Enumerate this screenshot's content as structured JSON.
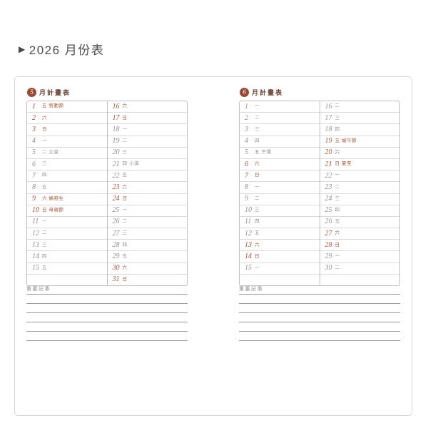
{
  "title": "2026 月份表",
  "title_bullet": "▶",
  "colors": {
    "accent_red": "#a3553a",
    "badge_bg": "#9a4a31",
    "header_brown": "#6b4236",
    "day_gray": "#8f8f8f"
  },
  "months": [
    {
      "badge_number": "5",
      "header_label": "月計畫表",
      "notes_label": "重要記事",
      "columns": [
        [
          {
            "day": "1",
            "weekday": "五",
            "note": "勞動節",
            "red": true,
            "note_red": true
          },
          {
            "day": "2",
            "weekday": "六",
            "red": true
          },
          {
            "day": "3",
            "weekday": "日",
            "red": true
          },
          {
            "day": "4",
            "weekday": "一"
          },
          {
            "day": "5",
            "weekday": "二",
            "note": "立夏"
          },
          {
            "day": "6",
            "weekday": "三"
          },
          {
            "day": "7",
            "weekday": "四"
          },
          {
            "day": "8",
            "weekday": "五"
          },
          {
            "day": "9",
            "weekday": "六",
            "note": "媽祖生",
            "red": true,
            "note_red": true
          },
          {
            "day": "10",
            "weekday": "日",
            "note": "母親節",
            "red": true,
            "note_red": true
          },
          {
            "day": "11",
            "weekday": "一"
          },
          {
            "day": "12",
            "weekday": "二"
          },
          {
            "day": "13",
            "weekday": "三"
          },
          {
            "day": "14",
            "weekday": "四"
          },
          {
            "day": "15",
            "weekday": "五"
          },
          {}
        ],
        [
          {
            "day": "16",
            "weekday": "六",
            "red": true
          },
          {
            "day": "17",
            "weekday": "日",
            "red": true
          },
          {
            "day": "18",
            "weekday": "一"
          },
          {
            "day": "19",
            "weekday": "二"
          },
          {
            "day": "20",
            "weekday": "三"
          },
          {
            "day": "21",
            "weekday": "四",
            "note": "小滿"
          },
          {
            "day": "22",
            "weekday": "五"
          },
          {
            "day": "23",
            "weekday": "六",
            "red": true
          },
          {
            "day": "24",
            "weekday": "日",
            "red": true
          },
          {
            "day": "25",
            "weekday": "一"
          },
          {
            "day": "26",
            "weekday": "二"
          },
          {
            "day": "27",
            "weekday": "三"
          },
          {
            "day": "28",
            "weekday": "四"
          },
          {
            "day": "29",
            "weekday": "五"
          },
          {
            "day": "30",
            "weekday": "六",
            "red": true
          },
          {
            "day": "31",
            "weekday": "日",
            "red": true
          }
        ]
      ]
    },
    {
      "badge_number": "6",
      "header_label": "月計畫表",
      "notes_label": "重要記事",
      "columns": [
        [
          {
            "day": "1",
            "weekday": "一"
          },
          {
            "day": "2",
            "weekday": "二"
          },
          {
            "day": "3",
            "weekday": "三"
          },
          {
            "day": "4",
            "weekday": "四"
          },
          {
            "day": "5",
            "weekday": "五",
            "note": "芒種"
          },
          {
            "day": "6",
            "weekday": "六",
            "red": true
          },
          {
            "day": "7",
            "weekday": "日",
            "red": true
          },
          {
            "day": "8",
            "weekday": "一"
          },
          {
            "day": "9",
            "weekday": "二"
          },
          {
            "day": "10",
            "weekday": "三"
          },
          {
            "day": "11",
            "weekday": "四"
          },
          {
            "day": "12",
            "weekday": "五"
          },
          {
            "day": "13",
            "weekday": "六",
            "red": true
          },
          {
            "day": "14",
            "weekday": "日",
            "red": true
          },
          {
            "day": "15",
            "weekday": "一"
          },
          {}
        ],
        [
          {
            "day": "16",
            "weekday": "二"
          },
          {
            "day": "17",
            "weekday": "三"
          },
          {
            "day": "18",
            "weekday": "四"
          },
          {
            "day": "19",
            "weekday": "五",
            "note": "端午節",
            "red": true,
            "note_red": true
          },
          {
            "day": "20",
            "weekday": "六",
            "red": true
          },
          {
            "day": "21",
            "weekday": "日",
            "note": "夏至",
            "red": true,
            "note_red": true
          },
          {
            "day": "22",
            "weekday": "一"
          },
          {
            "day": "23",
            "weekday": "二"
          },
          {
            "day": "24",
            "weekday": "三"
          },
          {
            "day": "25",
            "weekday": "四"
          },
          {
            "day": "26",
            "weekday": "五"
          },
          {
            "day": "27",
            "weekday": "六",
            "red": true
          },
          {
            "day": "28",
            "weekday": "日",
            "red": true
          },
          {
            "day": "29",
            "weekday": "一"
          },
          {
            "day": "30",
            "weekday": "二"
          },
          {}
        ]
      ]
    }
  ]
}
